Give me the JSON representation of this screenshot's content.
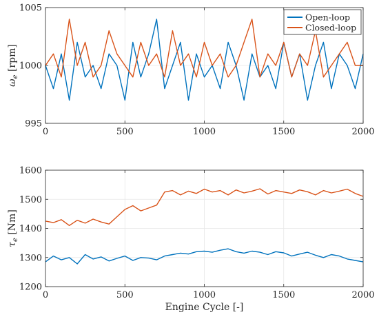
{
  "colors": {
    "series1": "#0072BD",
    "series2": "#D95319",
    "grid": "#e6e6e6",
    "axis": "#262626"
  },
  "chart_data": [
    {
      "type": "line",
      "xlabel": "",
      "ylabel_prefix": "ω",
      "ylabel_sub": "e",
      "ylabel_unit": "[rpm]",
      "xlim": [
        0,
        2000
      ],
      "ylim": [
        995,
        1005
      ],
      "xticks": [
        0,
        500,
        1000,
        1500,
        2000
      ],
      "yticks": [
        995,
        1000,
        1005
      ],
      "xtick_labels": [
        "0",
        "500",
        "1000",
        "1500",
        "2000"
      ],
      "ytick_labels": [
        "995",
        "1000",
        "1005"
      ],
      "grid": true,
      "legend": "top-right",
      "series": [
        {
          "name": "Open-loop",
          "color": "#0072BD",
          "x": [
            0,
            50,
            100,
            150,
            200,
            250,
            300,
            350,
            400,
            450,
            500,
            550,
            600,
            650,
            700,
            750,
            800,
            850,
            900,
            950,
            1000,
            1050,
            1100,
            1150,
            1200,
            1250,
            1300,
            1350,
            1400,
            1450,
            1500,
            1550,
            1600,
            1650,
            1700,
            1750,
            1800,
            1850,
            1900,
            1950,
            2000
          ],
          "values": [
            1000,
            998,
            1001,
            997,
            1002,
            999,
            1000,
            998,
            1001,
            1000,
            997,
            1002,
            999,
            1001,
            1004,
            998,
            1000,
            1002,
            997,
            1001,
            999,
            1000,
            998,
            1002,
            1000,
            997,
            1001,
            999,
            1000,
            998,
            1002,
            999,
            1001,
            997,
            1000,
            1002,
            998,
            1001,
            1000,
            998,
            1001
          ]
        },
        {
          "name": "Closed-loop",
          "color": "#D95319",
          "x": [
            0,
            50,
            100,
            150,
            200,
            250,
            300,
            350,
            400,
            450,
            500,
            550,
            600,
            650,
            700,
            750,
            800,
            850,
            900,
            950,
            1000,
            1050,
            1100,
            1150,
            1200,
            1250,
            1300,
            1350,
            1400,
            1450,
            1500,
            1550,
            1600,
            1650,
            1700,
            1750,
            1800,
            1850,
            1900,
            1950,
            2000
          ],
          "values": [
            1000,
            1001,
            999,
            1004,
            1000,
            1002,
            999,
            1000,
            1003,
            1001,
            1000,
            999,
            1002,
            1000,
            1001,
            999,
            1003,
            1000,
            1001,
            999,
            1002,
            1000,
            1001,
            999,
            1000,
            1002,
            1004,
            999,
            1001,
            1000,
            1002,
            999,
            1001,
            1000,
            1003,
            999,
            1000,
            1001,
            1002,
            1000,
            1000
          ]
        }
      ]
    },
    {
      "type": "line",
      "xlabel": "Engine Cycle [-]",
      "ylabel_prefix": "τ",
      "ylabel_sub": "e",
      "ylabel_unit": "[Nm]",
      "xlim": [
        0,
        2000
      ],
      "ylim": [
        1200,
        1600
      ],
      "xticks": [
        0,
        500,
        1000,
        1500,
        2000
      ],
      "yticks": [
        1200,
        1300,
        1400,
        1500,
        1600
      ],
      "xtick_labels": [
        "0",
        "500",
        "1000",
        "1500",
        "2000"
      ],
      "ytick_labels": [
        "1200",
        "1300",
        "1400",
        "1500",
        "1600"
      ],
      "grid": true,
      "series": [
        {
          "name": "Open-loop",
          "color": "#0072BD",
          "x": [
            0,
            50,
            100,
            150,
            200,
            250,
            300,
            350,
            400,
            450,
            500,
            550,
            600,
            650,
            700,
            750,
            800,
            850,
            900,
            950,
            1000,
            1050,
            1100,
            1150,
            1200,
            1250,
            1300,
            1350,
            1400,
            1450,
            1500,
            1550,
            1600,
            1650,
            1700,
            1750,
            1800,
            1850,
            1900,
            1950,
            2000
          ],
          "values": [
            1285,
            1305,
            1292,
            1300,
            1278,
            1310,
            1295,
            1302,
            1288,
            1297,
            1305,
            1290,
            1300,
            1298,
            1292,
            1305,
            1310,
            1315,
            1312,
            1320,
            1322,
            1318,
            1325,
            1330,
            1320,
            1315,
            1322,
            1318,
            1310,
            1320,
            1316,
            1305,
            1312,
            1318,
            1308,
            1300,
            1310,
            1305,
            1295,
            1290,
            1285
          ]
        },
        {
          "name": "Closed-loop",
          "color": "#D95319",
          "x": [
            0,
            50,
            100,
            150,
            200,
            250,
            300,
            350,
            400,
            450,
            500,
            550,
            600,
            650,
            700,
            750,
            800,
            850,
            900,
            950,
            1000,
            1050,
            1100,
            1150,
            1200,
            1250,
            1300,
            1350,
            1400,
            1450,
            1500,
            1550,
            1600,
            1650,
            1700,
            1750,
            1800,
            1850,
            1900,
            1950,
            2000
          ],
          "values": [
            1425,
            1420,
            1430,
            1410,
            1428,
            1418,
            1432,
            1422,
            1415,
            1440,
            1465,
            1478,
            1460,
            1470,
            1480,
            1525,
            1530,
            1515,
            1528,
            1520,
            1535,
            1525,
            1530,
            1515,
            1532,
            1522,
            1528,
            1536,
            1518,
            1530,
            1525,
            1520,
            1532,
            1526,
            1515,
            1530,
            1522,
            1528,
            1535,
            1520,
            1510
          ]
        }
      ]
    }
  ]
}
